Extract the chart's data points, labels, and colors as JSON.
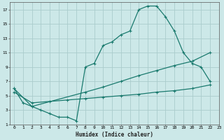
{
  "bg_color": "#cce8e8",
  "grid_color": "#aacccc",
  "line_color": "#1a7a6e",
  "xlabel": "Humidex (Indice chaleur)",
  "xlim": [
    -0.5,
    23
  ],
  "ylim": [
    1,
    18
  ],
  "xticks": [
    0,
    1,
    2,
    3,
    4,
    5,
    6,
    7,
    8,
    9,
    10,
    11,
    12,
    13,
    14,
    15,
    16,
    17,
    18,
    19,
    20,
    21,
    22,
    23
  ],
  "yticks": [
    1,
    3,
    5,
    7,
    9,
    11,
    13,
    15,
    17
  ],
  "line1_x": [
    0,
    1,
    2,
    3,
    4,
    5,
    6,
    7,
    8,
    9,
    10,
    11,
    12,
    13,
    14,
    15,
    16,
    17,
    18,
    19,
    20,
    21,
    22
  ],
  "line1_y": [
    6,
    4,
    3.5,
    3.0,
    2.5,
    2.0,
    2.0,
    1.5,
    9.0,
    9.5,
    12.0,
    12.5,
    13.5,
    14.0,
    17.0,
    17.5,
    17.5,
    16.0,
    14.0,
    11.0,
    9.5,
    9.0,
    7.0
  ],
  "line2_x": [
    0,
    2,
    8,
    10,
    12,
    14,
    16,
    18,
    20,
    22
  ],
  "line2_y": [
    6,
    3.5,
    5.5,
    6.2,
    7.0,
    7.8,
    8.5,
    9.2,
    9.8,
    11.0
  ],
  "line3_x": [
    0,
    2,
    4,
    6,
    8,
    10,
    12,
    14,
    16,
    18,
    20,
    22
  ],
  "line3_y": [
    5.5,
    4.0,
    4.2,
    4.4,
    4.6,
    4.8,
    5.0,
    5.2,
    5.5,
    5.7,
    6.0,
    6.5
  ],
  "marker": "+",
  "markersize": 2.5,
  "linewidth": 0.9
}
